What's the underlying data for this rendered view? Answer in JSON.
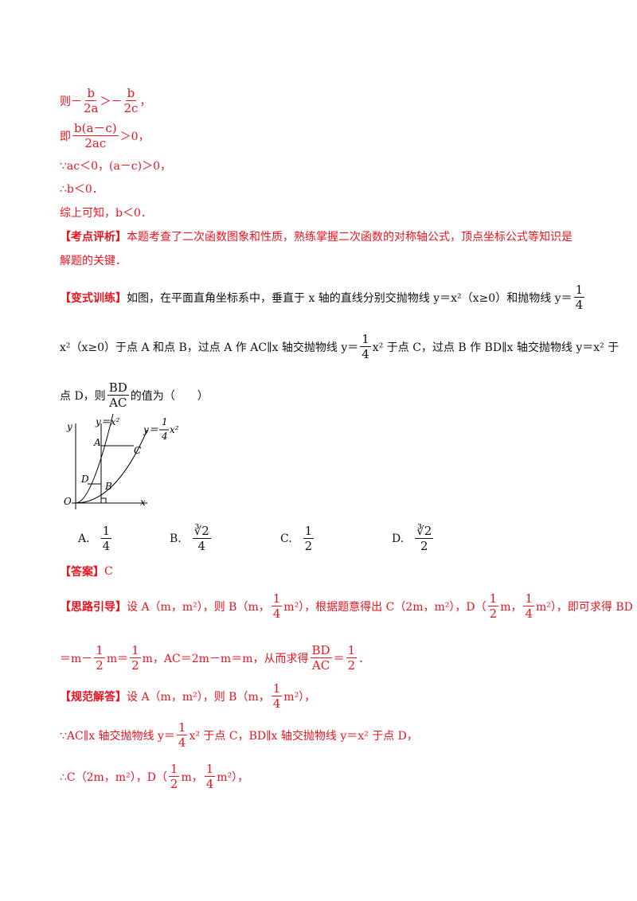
{
  "lines": [
    {
      "color": "red",
      "parts": [
        "则－",
        {
          "num": "b",
          "den": "2a"
        },
        "＞－",
        {
          "num": "b",
          "den": "2c"
        },
        "，"
      ]
    },
    {
      "color": "red",
      "parts": [
        "即",
        {
          "num": "b(a－c)",
          "den": "2ac"
        },
        "＞0，"
      ]
    },
    {
      "color": "red",
      "parts": [
        "∵ac＜0，(a－c)＞0，"
      ]
    },
    {
      "color": "red",
      "parts": [
        "∴b＜0．"
      ]
    },
    {
      "color": "red",
      "parts": [
        "综上可知，b＜0．"
      ]
    },
    {
      "color": "red",
      "parts": [
        {
          "label": "【考点评析】"
        },
        "本题考查了二次函数图象和性质，熟练掌握二次函数的对称轴公式，顶点坐标公式等知识是"
      ]
    },
    {
      "color": "red",
      "parts": [
        "解题的关键．"
      ]
    },
    {
      "color": "black",
      "parts": [
        {
          "label": "【变式训练】"
        },
        "如图，在平面直角坐标系中，垂直于 x 轴的直线分别交抛物线 y＝x²（x≥0）和抛物线 y＝",
        {
          "num": "1",
          "den": "4"
        }
      ]
    },
    {
      "color": "black",
      "parts": [
        "x²（x≥0）于点 A 和点 B，过点 A 作 AC∥x 轴交抛物线 y＝",
        {
          "num": "1",
          "den": "4"
        },
        "x² 于点 C，过点 B 作 BD∥x 轴交抛物线 y＝x² 于"
      ]
    },
    {
      "color": "black",
      "parts": [
        "点 D，则",
        {
          "num": "BD",
          "den": "AC"
        },
        "的值为（　　）"
      ]
    },
    {
      "color": "red",
      "parts": [
        {
          "label": "【答案】"
        },
        "C"
      ]
    },
    {
      "color": "red",
      "parts": [
        {
          "label": "【思路引导】"
        },
        "设 A（m，m²），则 B（m，",
        {
          "num": "1",
          "den": "4"
        },
        "m²），根据题意得出 C（2m，m²），D（",
        {
          "num": "1",
          "den": "2"
        },
        "m，",
        {
          "num": "1",
          "den": "4"
        },
        "m²），即可求得 BD"
      ]
    },
    {
      "color": "red",
      "parts": [
        "＝m－",
        {
          "num": "1",
          "den": "2"
        },
        "m＝",
        {
          "num": "1",
          "den": "2"
        },
        "m，AC＝2m－m＝m，从而求得",
        {
          "num": "BD",
          "den": "AC"
        },
        "＝",
        {
          "num": "1",
          "den": "2"
        },
        "．"
      ]
    },
    {
      "color": "red",
      "parts": [
        {
          "label": "【规范解答】"
        },
        "设 A（m，m²），则 B（m，",
        {
          "num": "1",
          "den": "4"
        },
        "m²），"
      ]
    },
    {
      "color": "red",
      "parts": [
        "∵AC∥x 轴交抛物线 y＝",
        {
          "num": "1",
          "den": "4"
        },
        "x² 于点 C，BD∥x 轴交抛物线 y＝x² 于点 D，"
      ]
    },
    {
      "color": "red",
      "parts": [
        "∴C（2m，m²），D（",
        {
          "num": "1",
          "den": "2"
        },
        "m，",
        {
          "num": "1",
          "den": "4"
        },
        "m²），"
      ]
    }
  ],
  "figure": {
    "labels": [
      "y",
      "x",
      "O",
      "A",
      "B",
      "C",
      "D",
      "y＝x²",
      "y＝",
      "1",
      "4",
      "x²"
    ]
  },
  "options": [
    {
      "letter": "A.",
      "num": "1",
      "den": "4"
    },
    {
      "letter": "B.",
      "num": "∛2",
      "den": "4"
    },
    {
      "letter": "C.",
      "num": "1",
      "den": "2"
    },
    {
      "letter": "D.",
      "num": "∛2",
      "den": "2"
    }
  ]
}
